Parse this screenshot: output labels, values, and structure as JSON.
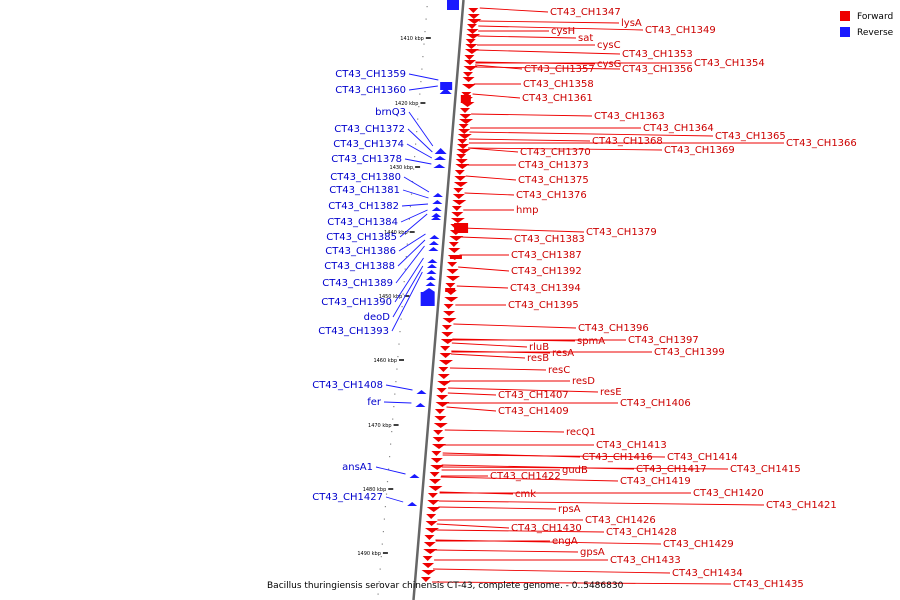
{
  "colors": {
    "forward": "#ee0000",
    "reverse": "#1a1aff",
    "backbone": "#666666"
  },
  "legend": [
    {
      "label": "Forward",
      "color": "#ee0000"
    },
    {
      "label": "Reverse",
      "color": "#1a1aff"
    }
  ],
  "caption": "Bacillus thuringiensis serovar chinensis CT-43, complete genome. - 0..5486830",
  "ticks": [
    "1410 kbp",
    "1420 kbp",
    "1430 kbp",
    "1440 kbp",
    "1450 kbp",
    "1460 kbp",
    "1470 kbp",
    "1480 kbp",
    "1490 kbp"
  ],
  "forward_genes": [
    "CT43_CH1347",
    "lysA",
    "cysH",
    "CT43_CH1349",
    "sat",
    "cysC",
    "CT43_CH1353",
    "cysG",
    "CT43_CH1354",
    "CT43_CH1357",
    "CT43_CH1356",
    "CT43_CH1358",
    "CT43_CH1361",
    "CT43_CH1363",
    "CT43_CH1364",
    "CT43_CH1365",
    "CT43_CH1368",
    "CT43_CH1366",
    "CT43_CH1370",
    "CT43_CH1369",
    "CT43_CH1373",
    "CT43_CH1375",
    "CT43_CH1376",
    "hmp",
    "CT43_CH1379",
    "CT43_CH1383",
    "CT43_CH1387",
    "CT43_CH1392",
    "CT43_CH1394",
    "CT43_CH1395",
    "CT43_CH1396",
    "spmA",
    "CT43_CH1397",
    "rluB",
    "resA",
    "CT43_CH1399",
    "resB",
    "resC",
    "resD",
    "resE",
    "CT43_CH1407",
    "CT43_CH1406",
    "CT43_CH1409",
    "recQ1",
    "CT43_CH1413",
    "CT43_CH1416",
    "CT43_CH1414",
    "gudB",
    "CT43_CH1417",
    "CT43_CH1415",
    "CT43_CH1422",
    "CT43_CH1419",
    "cmk",
    "CT43_CH1420",
    "CT43_CH1421",
    "rpsA",
    "CT43_CH1426",
    "CT43_CH1430",
    "CT43_CH1428",
    "engA",
    "CT43_CH1429",
    "gpsA",
    "CT43_CH1433",
    "CT43_CH1434",
    "CT43_CH1435"
  ],
  "reverse_genes": [
    "CT43_CH1359",
    "CT43_CH1360",
    "brnQ3",
    "CT43_CH1372",
    "CT43_CH1374",
    "CT43_CH1378",
    "CT43_CH1380",
    "CT43_CH1381",
    "CT43_CH1382",
    "CT43_CH1384",
    "CT43_CH1385",
    "CT43_CH1386",
    "CT43_CH1388",
    "CT43_CH1389",
    "CT43_CH1390",
    "deoD",
    "CT43_CH1393",
    "CT43_CH1408",
    "fer",
    "ansA1",
    "CT43_CH1427"
  ]
}
